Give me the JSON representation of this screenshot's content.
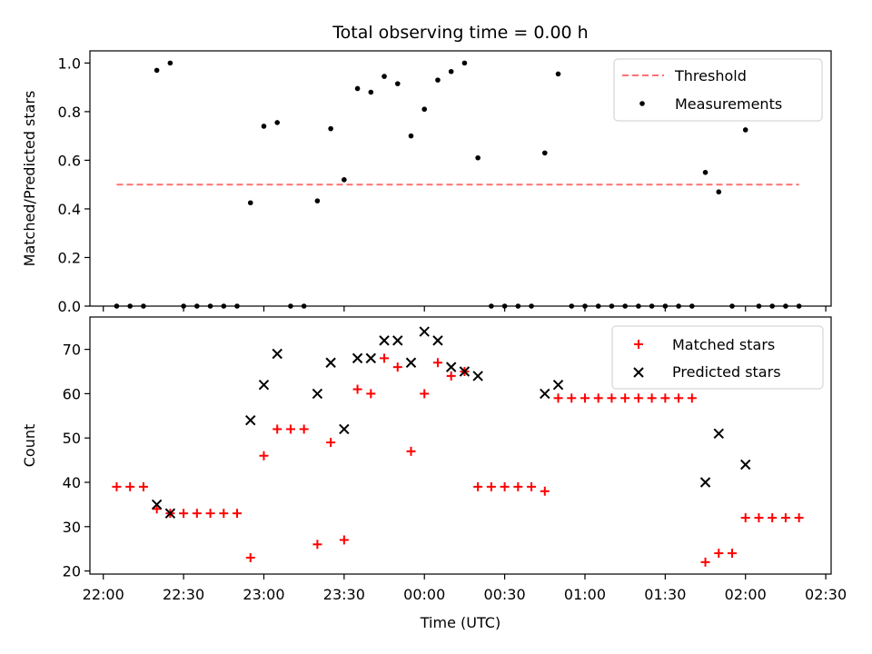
{
  "title": "Total observing time = 0.00 h",
  "colors": {
    "threshold": "#ff7070",
    "measurements": "#000000",
    "matched": "#ff0000",
    "predicted": "#000000"
  },
  "chart_data": [
    {
      "type": "scatter",
      "title": "Total observing time = 0.00 h",
      "xlabel": "",
      "ylabel": "Matched/Predicted stars",
      "xlim": [
        "21:55",
        "02:32"
      ],
      "ylim": [
        0,
        1.05
      ],
      "y_ticks": [
        "0.0",
        "0.2",
        "0.4",
        "0.6",
        "0.8",
        "1.0"
      ],
      "legend_position": "top-right",
      "legend": [
        "Threshold",
        "Measurements"
      ],
      "threshold": {
        "name": "Threshold",
        "value": 0.5,
        "x_start": "22:05",
        "x_end": "02:20",
        "style": "dashed"
      },
      "series": [
        {
          "name": "Measurements",
          "marker": "dot",
          "x": [
            "22:05",
            "22:10",
            "22:15",
            "22:20",
            "22:25",
            "22:30",
            "22:35",
            "22:40",
            "22:45",
            "22:50",
            "22:55",
            "23:00",
            "23:05",
            "23:10",
            "23:15",
            "23:20",
            "23:25",
            "23:30",
            "23:35",
            "23:40",
            "23:45",
            "23:50",
            "23:55",
            "00:00",
            "00:05",
            "00:10",
            "00:15",
            "00:20",
            "00:25",
            "00:30",
            "00:35",
            "00:40",
            "00:45",
            "00:50",
            "00:55",
            "01:00",
            "01:05",
            "01:10",
            "01:15",
            "01:20",
            "01:25",
            "01:30",
            "01:35",
            "01:40",
            "01:45",
            "01:50",
            "01:55",
            "02:00",
            "02:05",
            "02:10",
            "02:15",
            "02:20"
          ],
          "y": [
            0,
            0,
            0,
            0.97,
            1.0,
            0,
            0,
            0,
            0,
            0,
            0.425,
            0.74,
            0.755,
            0,
            0,
            0.433,
            0.73,
            0.52,
            0.895,
            0.88,
            0.945,
            0.915,
            0.7,
            0.81,
            0.93,
            0.965,
            1.0,
            0.61,
            0,
            0,
            0,
            0,
            0.63,
            0.955,
            0,
            0,
            0,
            0,
            0,
            0,
            0,
            0,
            0,
            0,
            0.55,
            0.47,
            0,
            0.725,
            0,
            0,
            0,
            0
          ]
        }
      ]
    },
    {
      "type": "scatter",
      "xlabel": "Time (UTC)",
      "ylabel": "Count",
      "xlim": [
        "21:55",
        "02:32"
      ],
      "ylim": [
        19.3,
        77.3
      ],
      "x_ticks": [
        "22:00",
        "22:30",
        "23:00",
        "23:30",
        "00:00",
        "00:30",
        "01:00",
        "01:30",
        "02:00",
        "02:30"
      ],
      "y_ticks": [
        "20",
        "30",
        "40",
        "50",
        "60",
        "70"
      ],
      "legend_position": "top-right",
      "legend": [
        "Matched stars",
        "Predicted stars"
      ],
      "series": [
        {
          "name": "Matched stars",
          "marker": "plus",
          "x": [
            "22:05",
            "22:10",
            "22:15",
            "22:20",
            "22:25",
            "22:30",
            "22:35",
            "22:40",
            "22:45",
            "22:50",
            "22:55",
            "23:00",
            "23:05",
            "23:10",
            "23:15",
            "23:20",
            "23:25",
            "23:30",
            "23:35",
            "23:40",
            "23:45",
            "23:50",
            "23:55",
            "00:00",
            "00:05",
            "00:10",
            "00:15",
            "00:20",
            "00:25",
            "00:30",
            "00:35",
            "00:40",
            "00:45",
            "00:50",
            "00:55",
            "01:00",
            "01:05",
            "01:10",
            "01:15",
            "01:20",
            "01:25",
            "01:30",
            "01:35",
            "01:40",
            "01:45",
            "01:50",
            "01:55",
            "02:00",
            "02:05",
            "02:10",
            "02:15",
            "02:20"
          ],
          "y": [
            39,
            39,
            39,
            34,
            33,
            33,
            33,
            33,
            33,
            33,
            23,
            46,
            52,
            52,
            52,
            26,
            49,
            27,
            61,
            60,
            68,
            66,
            47,
            60,
            67,
            64,
            65,
            39,
            39,
            39,
            39,
            39,
            38,
            59,
            59,
            59,
            59,
            59,
            59,
            59,
            59,
            59,
            59,
            59,
            22,
            24,
            24,
            32,
            32,
            32,
            32,
            32
          ]
        },
        {
          "name": "Predicted stars",
          "marker": "x",
          "x": [
            "22:20",
            "22:25",
            "22:55",
            "23:00",
            "23:05",
            "23:20",
            "23:25",
            "23:30",
            "23:35",
            "23:40",
            "23:45",
            "23:50",
            "23:55",
            "00:00",
            "00:05",
            "00:10",
            "00:15",
            "00:20",
            "00:45",
            "00:50",
            "01:45",
            "01:50",
            "02:00"
          ],
          "y": [
            35,
            33,
            54,
            62,
            69,
            60,
            67,
            52,
            68,
            68,
            72,
            72,
            67,
            74,
            72,
            66,
            65,
            64,
            60,
            62,
            40,
            51,
            44
          ]
        }
      ]
    }
  ]
}
